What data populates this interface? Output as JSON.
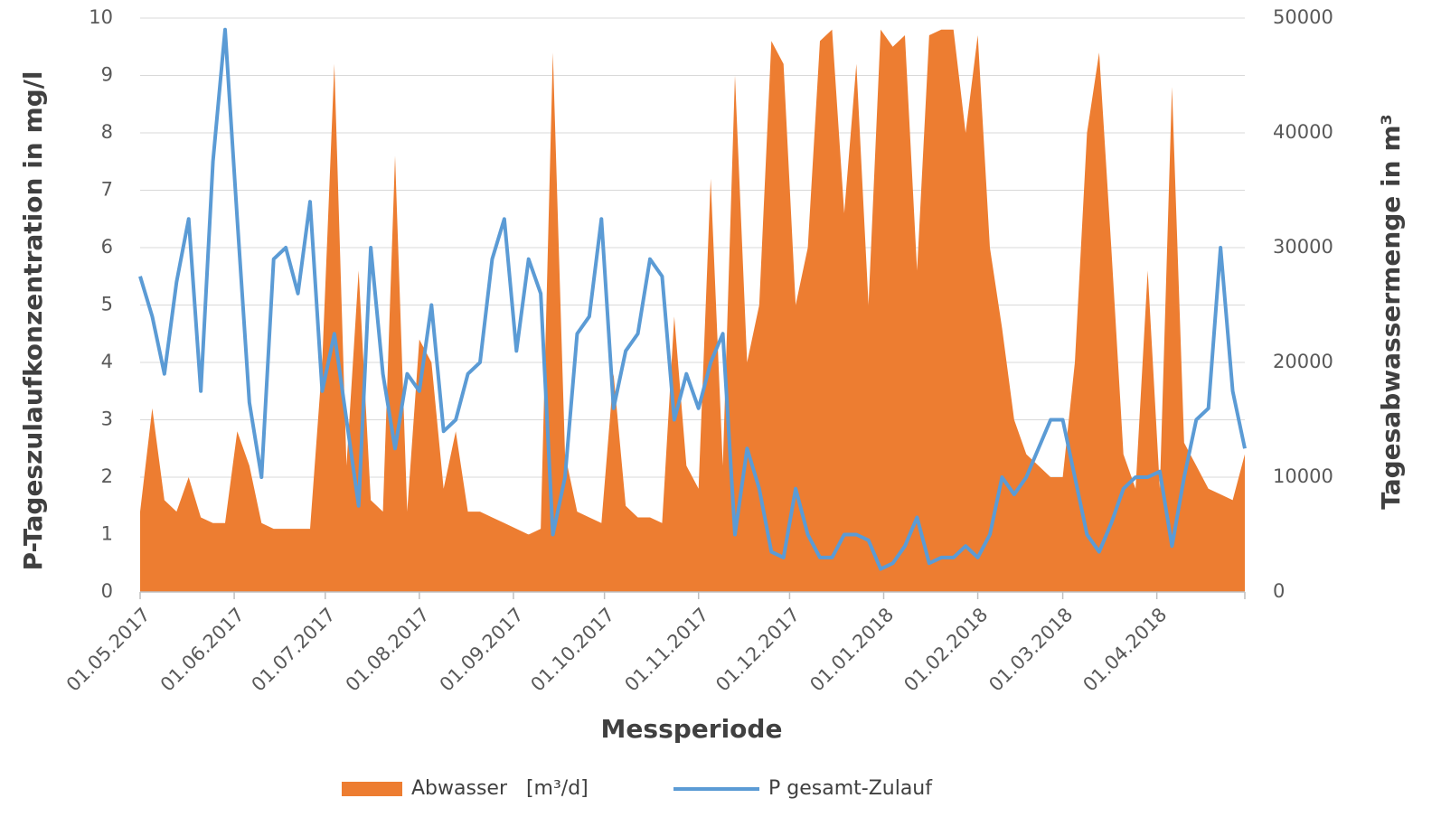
{
  "chart_data": {
    "type": "area-line",
    "xlabel": "Messperiode",
    "ylabel": "P-Tageszulaufkonzentration in mg/l",
    "y2label": "Tagesabwassermenge in m³",
    "xlim": [
      "01.05.2017",
      "30.04.2018"
    ],
    "xticks": [
      "01.05.2017",
      "01.06.2017",
      "01.07.2017",
      "01.08.2017",
      "01.09.2017",
      "01.10.2017",
      "01.11.2017",
      "01.12.2017",
      "01.01.2018",
      "01.02.2018",
      "01.03.2018",
      "01.04.2018"
    ],
    "ylim": [
      0,
      10
    ],
    "yticks": [
      0,
      1,
      2,
      3,
      4,
      5,
      6,
      7,
      8,
      9,
      10
    ],
    "y2lim": [
      0,
      50000
    ],
    "y2ticks": [
      0,
      10000,
      20000,
      30000,
      40000,
      50000
    ],
    "grid": true,
    "legend": "bottom",
    "x": [
      "01.05.2017",
      "05.05.2017",
      "09.05.2017",
      "13.05.2017",
      "17.05.2017",
      "21.05.2017",
      "25.05.2017",
      "29.05.2017",
      "02.06.2017",
      "06.06.2017",
      "10.06.2017",
      "14.06.2017",
      "18.06.2017",
      "22.06.2017",
      "26.06.2017",
      "30.06.2017",
      "04.07.2017",
      "08.07.2017",
      "12.07.2017",
      "16.07.2017",
      "20.07.2017",
      "24.07.2017",
      "28.07.2017",
      "01.08.2017",
      "05.08.2017",
      "09.08.2017",
      "13.08.2017",
      "17.08.2017",
      "21.08.2017",
      "25.08.2017",
      "29.08.2017",
      "02.09.2017",
      "06.09.2017",
      "10.09.2017",
      "14.09.2017",
      "18.09.2017",
      "22.09.2017",
      "26.09.2017",
      "30.09.2017",
      "04.10.2017",
      "08.10.2017",
      "12.10.2017",
      "16.10.2017",
      "20.10.2017",
      "24.10.2017",
      "28.10.2017",
      "01.11.2017",
      "05.11.2017",
      "09.11.2017",
      "13.11.2017",
      "17.11.2017",
      "21.11.2017",
      "25.11.2017",
      "29.11.2017",
      "03.12.2017",
      "07.12.2017",
      "11.12.2017",
      "15.12.2017",
      "19.12.2017",
      "23.12.2017",
      "27.12.2017",
      "31.12.2017",
      "04.01.2018",
      "08.01.2018",
      "12.01.2018",
      "16.01.2018",
      "20.01.2018",
      "24.01.2018",
      "28.01.2018",
      "01.02.2018",
      "05.02.2018",
      "09.02.2018",
      "13.02.2018",
      "17.02.2018",
      "21.02.2018",
      "25.02.2018",
      "01.03.2018",
      "05.03.2018",
      "09.03.2018",
      "13.03.2018",
      "17.03.2018",
      "21.03.2018",
      "25.03.2018",
      "29.03.2018",
      "02.04.2018",
      "06.04.2018",
      "10.04.2018",
      "14.04.2018",
      "18.04.2018",
      "22.04.2018",
      "26.04.2018",
      "30.04.2018"
    ],
    "series": [
      {
        "name": "Abwasser   [m³/d]",
        "kind": "area",
        "axis": "y2",
        "color": "#ed7d31",
        "values": [
          7000,
          16000,
          8000,
          7000,
          10000,
          6500,
          6000,
          6000,
          14000,
          11000,
          6000,
          5500,
          5500,
          5500,
          5500,
          20000,
          46000,
          11000,
          28000,
          8000,
          7000,
          38000,
          7000,
          22000,
          20000,
          9000,
          14000,
          7000,
          7000,
          6500,
          6000,
          5500,
          5000,
          5500,
          47000,
          12000,
          7000,
          6500,
          6000,
          19000,
          7500,
          6500,
          6500,
          6000,
          24000,
          11000,
          9000,
          36000,
          11000,
          45000,
          20000,
          25000,
          48000,
          46000,
          25000,
          30000,
          48000,
          49000,
          33000,
          46000,
          25000,
          49000,
          47500,
          48500,
          28000,
          48500,
          49000,
          49000,
          40000,
          48500,
          30000,
          23000,
          15000,
          12000,
          11000,
          10000,
          10000,
          20000,
          40000,
          47000,
          30000,
          12000,
          9000,
          28000,
          9000,
          44000,
          13000,
          11000,
          9000,
          8500,
          8000,
          12000
        ]
      },
      {
        "name": "P gesamt-Zulauf",
        "kind": "line",
        "axis": "y",
        "color": "#5b9bd5",
        "values": [
          5.5,
          4.8,
          3.8,
          5.4,
          6.5,
          3.5,
          7.5,
          9.8,
          6.5,
          3.3,
          2.0,
          5.8,
          6.0,
          5.2,
          6.8,
          3.5,
          4.5,
          3.0,
          1.5,
          6.0,
          3.8,
          2.5,
          3.8,
          3.5,
          5.0,
          2.8,
          3.0,
          3.8,
          4.0,
          5.8,
          6.5,
          4.2,
          5.8,
          5.2,
          1.0,
          2.0,
          4.5,
          4.8,
          6.5,
          3.2,
          4.2,
          4.5,
          5.8,
          5.5,
          3.0,
          3.8,
          3.2,
          4.0,
          4.5,
          1.0,
          2.5,
          1.8,
          0.7,
          0.6,
          1.8,
          1.0,
          0.6,
          0.6,
          1.0,
          1.0,
          0.9,
          0.4,
          0.5,
          0.8,
          1.3,
          0.5,
          0.6,
          0.6,
          0.8,
          0.6,
          1.0,
          2.0,
          1.7,
          2.0,
          2.5,
          3.0,
          3.0,
          2.0,
          1.0,
          0.7,
          1.2,
          1.8,
          2.0,
          2.0,
          2.1,
          0.8,
          2.0,
          3.0,
          3.2,
          6.0,
          3.5,
          2.5
        ]
      }
    ]
  }
}
